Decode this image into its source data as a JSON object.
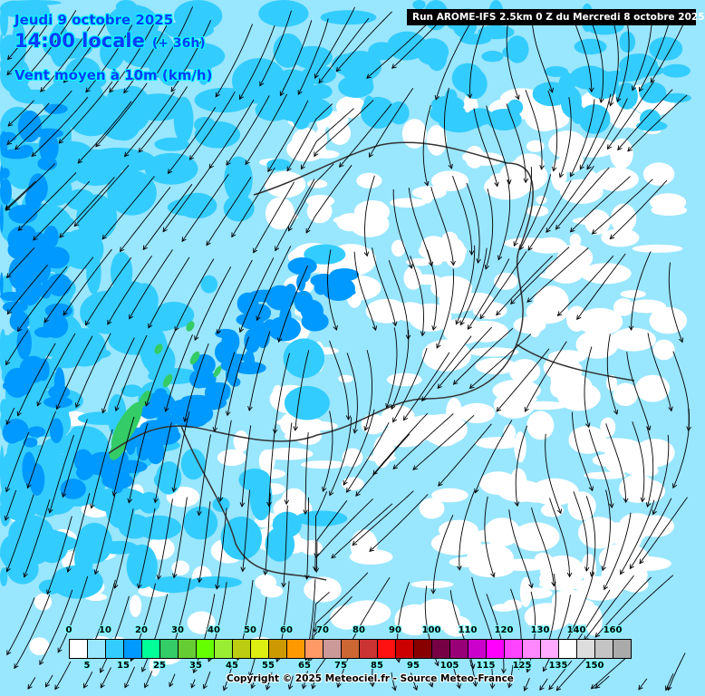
{
  "header": {
    "date": "Jeudi 9 octobre 2025",
    "time": "14:00 locale",
    "lead": "(+ 36h)",
    "variable": "Vent moyen à 10m (km/h)"
  },
  "run_banner": "Run AROME-IFS 2.5km 0 Z du Mercredi 8 octobre 2025",
  "legend": {
    "colors": [
      "#ffffff",
      "#99e6ff",
      "#33ccff",
      "#0099ff",
      "#00ff99",
      "#33cc66",
      "#66cc33",
      "#66ff00",
      "#99ee33",
      "#bbcc11",
      "#ddee11",
      "#cc9900",
      "#ff9900",
      "#ff9966",
      "#cc9999",
      "#cc6633",
      "#cc3333",
      "#ff1111",
      "#cc0000",
      "#880000",
      "#770044",
      "#990077",
      "#cc00cc",
      "#ff00ff",
      "#ff44ff",
      "#ff88ff",
      "#ffaaff",
      "#ffffff",
      "#dddddd",
      "#c4c4c4",
      "#aaaaaa"
    ],
    "top_labels": [
      "0",
      "10",
      "20",
      "30",
      "40",
      "50",
      "60",
      "70",
      "80",
      "90",
      "100",
      "110",
      "120",
      "130",
      "140",
      "160"
    ],
    "bottom_labels": [
      "5",
      "15",
      "25",
      "35",
      "45",
      "55",
      "65",
      "75",
      "85",
      "95",
      "105",
      "115",
      "125",
      "135",
      "150"
    ]
  },
  "copyright": "Copyright © 2025 Meteociel.fr - Source Meteo-France"
}
